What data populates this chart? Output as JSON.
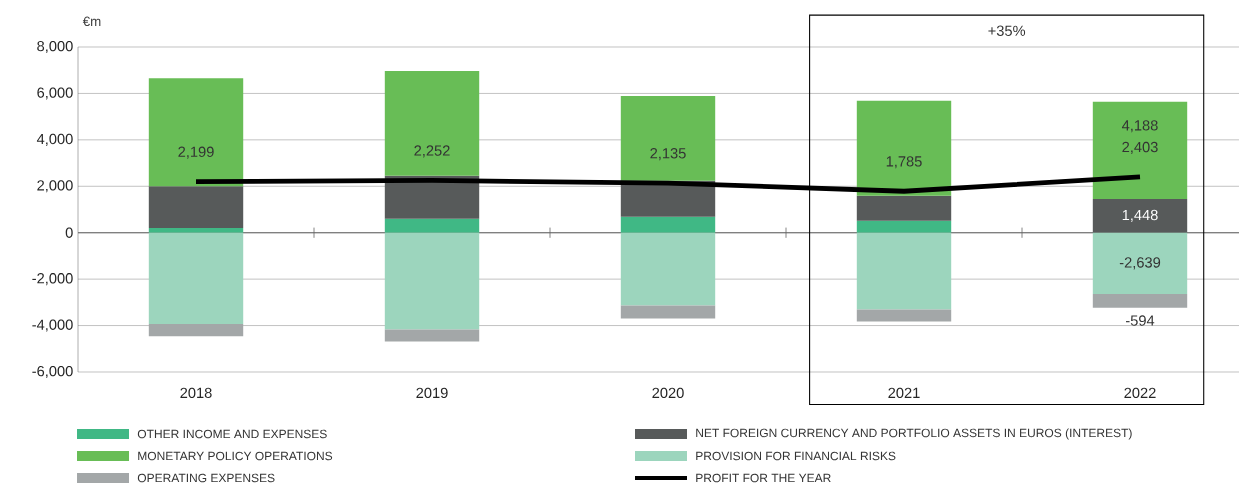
{
  "chart_data": {
    "type": "bar",
    "stacked": true,
    "ylabel": "€m",
    "categories": [
      "2018",
      "2019",
      "2020",
      "2021",
      "2022"
    ],
    "ylim": [
      -6000,
      8000
    ],
    "yticks": [
      {
        "value": -6000,
        "label": "-6,000"
      },
      {
        "value": -4000,
        "label": "-4,000"
      },
      {
        "value": -2000,
        "label": "-2,000"
      },
      0,
      {
        "value": 2000,
        "label": "2,000"
      },
      {
        "value": 4000,
        "label": "4,000"
      },
      {
        "value": 6000,
        "label": "6,000"
      },
      {
        "value": 8000,
        "label": "8,000"
      }
    ],
    "grid": "y",
    "legend": "bottom",
    "annotations": [
      "+35%"
    ],
    "series": [
      {
        "name": "OTHER INCOME AND EXPENSES",
        "color": "#40b885",
        "values": [
          200,
          600,
          690,
          520,
          0
        ]
      },
      {
        "name": "NET FOREIGN CURRENCY AND PORTFOLIO ASSETS IN EUROS (INTEREST)",
        "color": "#575a5a",
        "values": [
          1800,
          1850,
          1550,
          1070,
          1448
        ],
        "value_labels": [
          null,
          null,
          null,
          null,
          "1,448"
        ]
      },
      {
        "name": "MONETARY POLICY OPERATIONS",
        "color": "#68bd56",
        "values": [
          4650,
          4520,
          3650,
          4090,
          4188
        ],
        "value_labels": [
          null,
          null,
          null,
          null,
          "4,188"
        ]
      },
      {
        "name": "PROVISION FOR FINANCIAL RISKS",
        "color": "#9cd5bd",
        "values": [
          -3930,
          -4170,
          -3140,
          -3310,
          -2639
        ],
        "value_labels": [
          null,
          null,
          null,
          null,
          "-2,639"
        ]
      },
      {
        "name": "OPERATING EXPENSES",
        "color": "#a3a7a8",
        "values": [
          -530,
          -520,
          -560,
          -520,
          -594
        ],
        "value_labels": [
          null,
          null,
          null,
          null,
          "-594"
        ]
      },
      {
        "name": "PROFIT FOR THE YEAR",
        "type": "line",
        "color": "#000000",
        "values": [
          2199,
          2252,
          2135,
          1785,
          2403
        ],
        "value_labels": [
          "2,199",
          "2,252",
          "2,135",
          "1,785",
          "2,403"
        ]
      }
    ]
  }
}
